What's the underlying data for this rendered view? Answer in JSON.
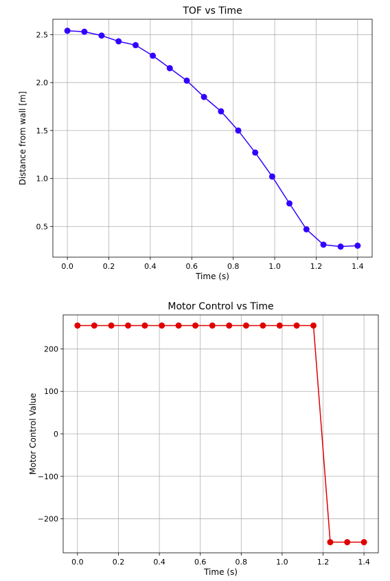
{
  "chart_data": [
    {
      "type": "line",
      "title": "TOF vs Time",
      "xlabel": "Time (s)",
      "ylabel": "Distance from wall [m]",
      "xlim": [
        -0.07,
        1.47
      ],
      "ylim": [
        0.18,
        2.66
      ],
      "xticks": [
        "0.0",
        "0.2",
        "0.4",
        "0.6",
        "0.8",
        "1.0",
        "1.2",
        "1.4"
      ],
      "yticks": [
        "0.5",
        "1.0",
        "1.5",
        "2.0",
        "2.5"
      ],
      "grid": true,
      "color": "#3300ff",
      "series": [
        {
          "x": [
            0.0,
            0.082,
            0.165,
            0.247,
            0.329,
            0.412,
            0.494,
            0.576,
            0.659,
            0.741,
            0.824,
            0.906,
            0.988,
            1.071,
            1.153,
            1.235,
            1.318,
            1.4
          ],
          "y": [
            2.54,
            2.53,
            2.49,
            2.43,
            2.39,
            2.28,
            2.15,
            2.02,
            1.85,
            1.7,
            1.5,
            1.27,
            1.02,
            0.74,
            0.47,
            0.31,
            0.29,
            0.3
          ]
        }
      ]
    },
    {
      "type": "line",
      "title": "Motor Control vs Time",
      "xlabel": "Time (s)",
      "ylabel": "Motor Control Value",
      "xlim": [
        -0.07,
        1.47
      ],
      "ylim": [
        -280,
        280
      ],
      "xticks": [
        "0.0",
        "0.2",
        "0.4",
        "0.6",
        "0.8",
        "1.0",
        "1.2",
        "1.4"
      ],
      "yticks": [
        "200",
        "100",
        "0",
        "−100",
        "−200"
      ],
      "grid": true,
      "color": "#e00000",
      "series": [
        {
          "x": [
            0.0,
            0.082,
            0.165,
            0.247,
            0.329,
            0.412,
            0.494,
            0.576,
            0.659,
            0.741,
            0.824,
            0.906,
            0.988,
            1.071,
            1.153,
            1.235,
            1.318,
            1.4
          ],
          "y": [
            255,
            255,
            255,
            255,
            255,
            255,
            255,
            255,
            255,
            255,
            255,
            255,
            255,
            255,
            255,
            -255,
            -255,
            -255
          ]
        }
      ]
    }
  ]
}
